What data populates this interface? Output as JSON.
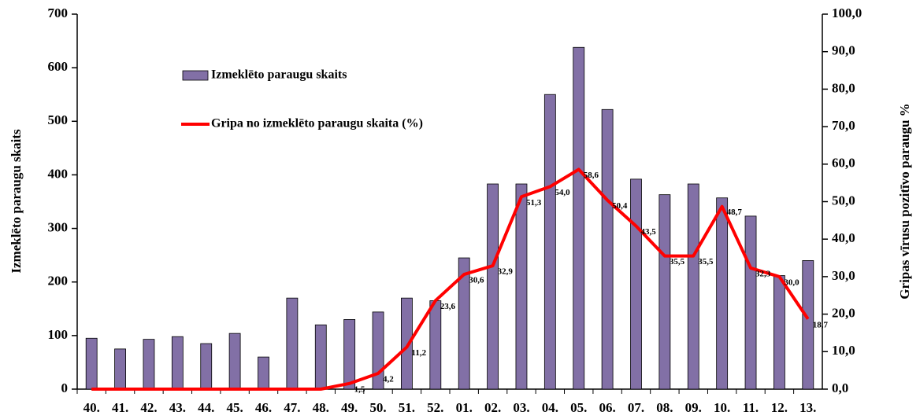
{
  "chart_data": {
    "type": "bar",
    "categories": [
      "40.",
      "41.",
      "42.",
      "43.",
      "44.",
      "45.",
      "46.",
      "47.",
      "48.",
      "49.",
      "50.",
      "51.",
      "52.",
      "01.",
      "02.",
      "03.",
      "04.",
      "05.",
      "06.",
      "07.",
      "08.",
      "09.",
      "10.",
      "11.",
      "12.",
      "13."
    ],
    "series": [
      {
        "name": "Izmeklēto paraugu skaits",
        "type": "bar",
        "color": "#8270a6",
        "values": [
          95,
          75,
          93,
          98,
          85,
          104,
          60,
          170,
          120,
          130,
          144,
          170,
          165,
          245,
          383,
          383,
          550,
          638,
          522,
          392,
          363,
          383,
          357,
          323,
          212,
          240
        ]
      },
      {
        "name": "Gripa no izmeklēto paraugu skaita (%)",
        "type": "line",
        "axis": "y2",
        "color": "#ff0000",
        "values": [
          0,
          0,
          0,
          0,
          0,
          0,
          0,
          0,
          0,
          1.5,
          4.2,
          11.2,
          23.6,
          30.6,
          32.9,
          51.3,
          54.0,
          58.6,
          50.4,
          43.5,
          35.5,
          35.5,
          48.7,
          32.3,
          30.0,
          18.7
        ],
        "value_labels": [
          null,
          null,
          null,
          null,
          null,
          null,
          null,
          null,
          null,
          "1,5",
          "4,2",
          "11,2",
          "23,6",
          "30,6",
          "32,9",
          "51,3",
          "54,0",
          "58,6",
          "50,4",
          "43,5",
          "35,5",
          "35,5",
          "48,7",
          "32,3",
          "30,0",
          "18,7"
        ]
      }
    ],
    "y_label": "Izmeklēto paraugu skaits",
    "y2_label": "Gripas vīrusu pozitīvo  paraugu %",
    "ylim": [
      0,
      700
    ],
    "yticks": [
      0,
      100,
      200,
      300,
      400,
      500,
      600,
      700
    ],
    "y2lim": [
      0,
      100
    ],
    "y2ticks": [
      {
        "value": 0,
        "label": "0,0"
      },
      {
        "value": 10,
        "label": "10,0"
      },
      {
        "value": 20,
        "label": "20,0"
      },
      {
        "value": 30,
        "label": "30,0"
      },
      {
        "value": 40,
        "label": "40,0"
      },
      {
        "value": 50,
        "label": "50,0"
      },
      {
        "value": 60,
        "label": "60,0"
      },
      {
        "value": 70,
        "label": "70,0"
      },
      {
        "value": 80,
        "label": "80,0"
      },
      {
        "value": 90,
        "label": "90,0"
      },
      {
        "value": 100,
        "label": "100,0"
      }
    ],
    "legend": "top-left"
  }
}
